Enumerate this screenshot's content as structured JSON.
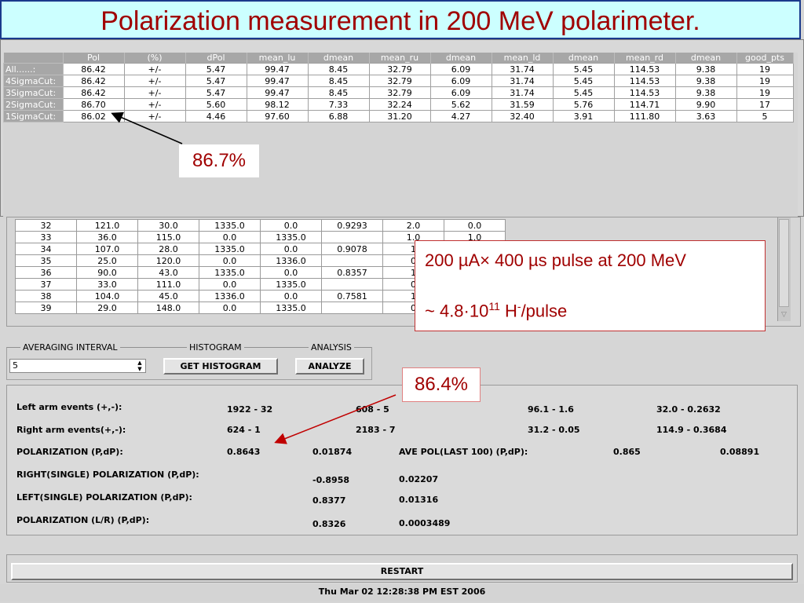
{
  "slide_title": "Polarization measurement in 200 MeV polarimeter.",
  "summary_table": {
    "columns": [
      "",
      "Pol",
      "(%)",
      "dPol",
      "mean_lu",
      "dmean",
      "mean_ru",
      "dmean",
      "mean_ld",
      "dmean",
      "mean_rd",
      "dmean",
      "good_pts"
    ],
    "rows": [
      [
        "All......:",
        "86.42",
        "+/-",
        "5.47",
        "99.47",
        "8.45",
        "32.79",
        "6.09",
        "31.74",
        "5.45",
        "114.53",
        "9.38",
        "19"
      ],
      [
        "4SigmaCut:",
        "86.42",
        "+/-",
        "5.47",
        "99.47",
        "8.45",
        "32.79",
        "6.09",
        "31.74",
        "5.45",
        "114.53",
        "9.38",
        "19"
      ],
      [
        "3SigmaCut:",
        "86.42",
        "+/-",
        "5.47",
        "99.47",
        "8.45",
        "32.79",
        "6.09",
        "31.74",
        "5.45",
        "114.53",
        "9.38",
        "19"
      ],
      [
        "2SigmaCut:",
        "86.70",
        "+/-",
        "5.60",
        "98.12",
        "7.33",
        "32.24",
        "5.62",
        "31.59",
        "5.76",
        "114.71",
        "9.90",
        "17"
      ],
      [
        "1SigmaCut:",
        "86.02",
        "+/-",
        "4.46",
        "97.60",
        "6.88",
        "31.20",
        "4.27",
        "32.40",
        "3.91",
        "111.80",
        "3.63",
        "5"
      ]
    ]
  },
  "event_table": {
    "rows": [
      [
        "32",
        "121.0",
        "30.0",
        "1335.0",
        "0.0",
        "0.9293",
        "2.0",
        "0.0"
      ],
      [
        "33",
        "36.0",
        "115.0",
        "0.0",
        "1335.0",
        "",
        "1.0",
        "1.0"
      ],
      [
        "34",
        "107.0",
        "28.0",
        "1335.0",
        "0.0",
        "0.9078",
        "1",
        ""
      ],
      [
        "35",
        "25.0",
        "120.0",
        "0.0",
        "1336.0",
        "",
        "0",
        ""
      ],
      [
        "36",
        "90.0",
        "43.0",
        "1335.0",
        "0.0",
        "0.8357",
        "1",
        ""
      ],
      [
        "37",
        "33.0",
        "111.0",
        "0.0",
        "1335.0",
        "",
        "0",
        ""
      ],
      [
        "38",
        "104.0",
        "45.0",
        "1336.0",
        "0.0",
        "0.7581",
        "1",
        ""
      ],
      [
        "39",
        "29.0",
        "148.0",
        "0.0",
        "1335.0",
        "",
        "0",
        ""
      ]
    ]
  },
  "controls": {
    "averaging_label": "AVERAGING INTERVAL",
    "averaging_value": "5",
    "histogram_label": "HISTOGRAM",
    "histogram_button": "GET HISTOGRAM",
    "analysis_label": "ANALYSIS",
    "analyze_button": "ANALYZE"
  },
  "results": {
    "left_arm_label": "Left arm events (+,-):",
    "left_arm_values": [
      "1922 - 32",
      "608 - 5",
      "96.1 - 1.6",
      "32.0 - 0.2632"
    ],
    "right_arm_label": "Right arm events(+,-):",
    "right_arm_values": [
      "624 - 1",
      "2183 - 7",
      "31.2 - 0.05",
      "114.9 - 0.3684"
    ],
    "polarization_label": "POLARIZATION (P,dP):",
    "polarization_p": "0.8643",
    "polarization_dp": "0.01874",
    "ave_pol_label": "AVE POL(LAST 100) (P,dP):",
    "ave_pol_p": "0.865",
    "ave_pol_dp": "0.08891",
    "right_single_label": "RIGHT(SINGLE) POLARIZATION (P,dP):",
    "right_single_p": "-0.8958",
    "right_single_dp": "0.02207",
    "left_single_label": "LEFT(SINGLE) POLARIZATION (P,dP):",
    "left_single_p": "0.8377",
    "left_single_dp": "0.01316",
    "lr_label": "POLARIZATION (L/R) (P,dP):",
    "lr_p": "0.8326",
    "lr_dp": "0.0003489"
  },
  "restart_button": "RESTART",
  "status_time": "Thu Mar 02 12:28:38 PM EST 2006",
  "annotations": {
    "callout_867": "86.7%",
    "callout_864": "86.4%",
    "beam_line1": "200 µA× 400 µs pulse at 200 MeV",
    "beam_line2_prefix": "~ 4.8·10",
    "beam_line2_exp": "11",
    "beam_line2_h": " H",
    "beam_line2_sup": "-",
    "beam_line2_suffix": "/pulse"
  },
  "colors": {
    "title_text": "#a00000",
    "title_bg": "#ccffff",
    "arrow_red": "#c00000"
  }
}
